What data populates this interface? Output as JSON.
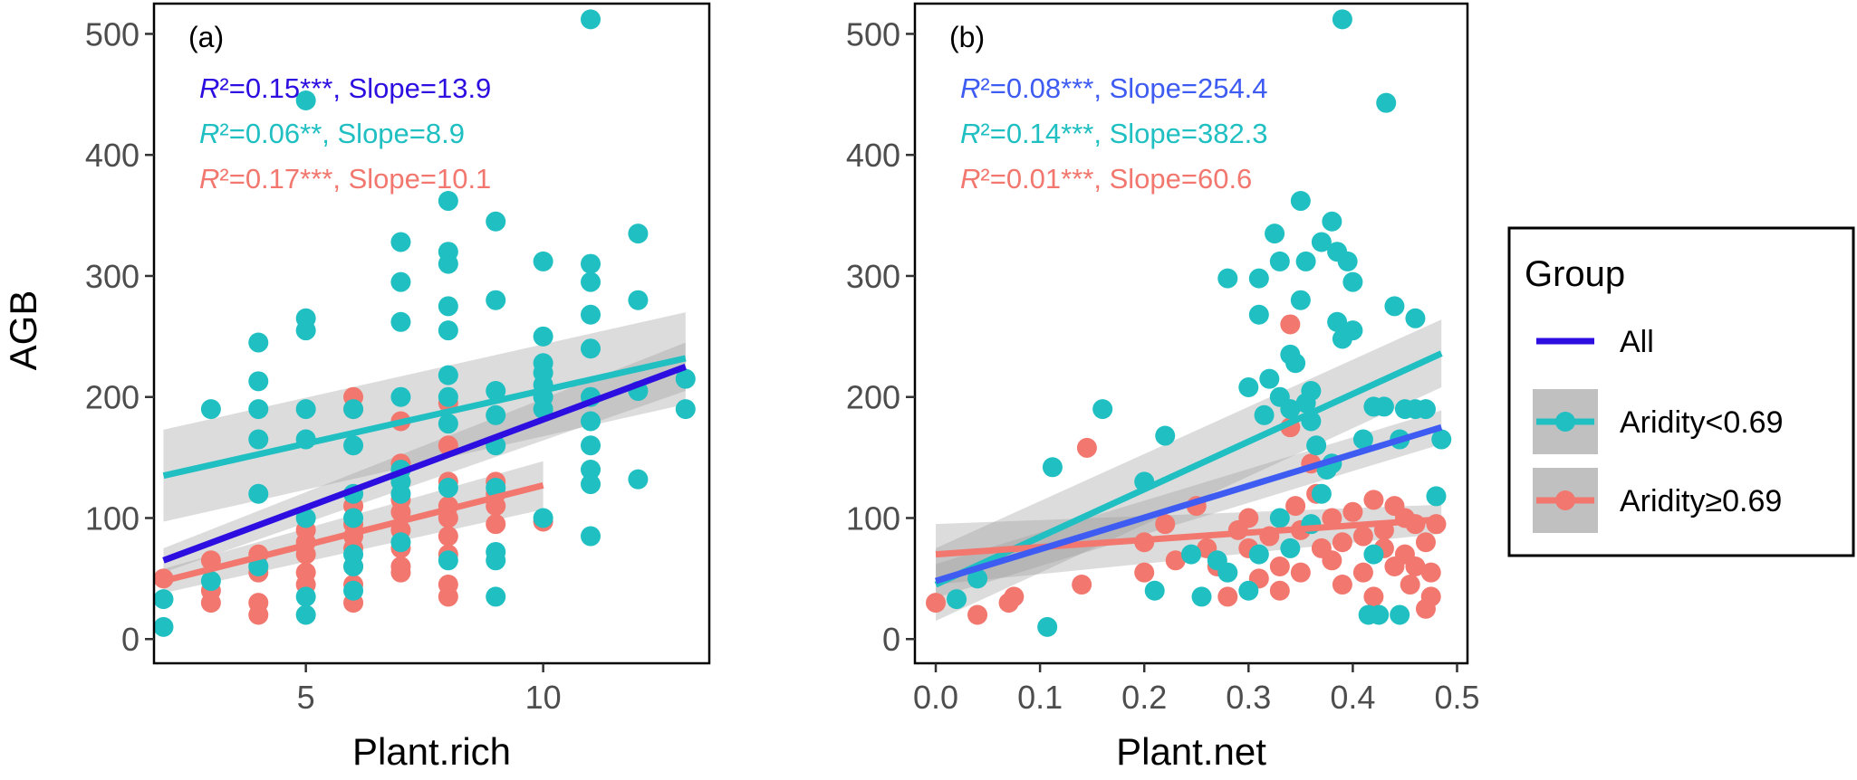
{
  "colors": {
    "all": "#2C0FE0",
    "all_b": "#3E5BF2",
    "low": "#1FBFC2",
    "high": "#F2776E",
    "ribbon": "#9a9a9a"
  },
  "legend": {
    "title": "Group",
    "items": [
      {
        "key": "all",
        "label": "All"
      },
      {
        "key": "low",
        "label": "Aridity<0.69"
      },
      {
        "key": "high",
        "label": "Aridity≥0.69"
      }
    ]
  },
  "y_label": "AGB",
  "chart_data": [
    {
      "type": "scatter",
      "panel_label": "(a)",
      "xlabel": "Plant.rich",
      "ylabel": "AGB",
      "xlim": [
        1.8,
        13.5
      ],
      "ylim": [
        -20,
        525
      ],
      "xticks": [
        5,
        10
      ],
      "yticks": [
        0,
        100,
        200,
        300,
        400,
        500
      ],
      "annotations": [
        {
          "italic": "R",
          "text": "²=0.15***, Slope=13.9",
          "color_key": "all"
        },
        {
          "italic": "R",
          "text": "²=0.06**, Slope=8.9",
          "color_key": "low"
        },
        {
          "italic": "R",
          "text": "²=0.17***, Slope=10.1",
          "color_key": "high"
        }
      ],
      "fits": [
        {
          "group": "low",
          "x": [
            2,
            13
          ],
          "y": [
            135,
            232
          ],
          "ci": [
            38,
            38
          ]
        },
        {
          "group": "high",
          "x": [
            2,
            10
          ],
          "y": [
            48,
            127
          ],
          "ci": [
            10,
            20
          ]
        },
        {
          "group": "all",
          "x": [
            2,
            13
          ],
          "y": [
            65,
            225
          ],
          "ci": [
            10,
            20
          ]
        }
      ],
      "series": [
        {
          "name": "Aridity<0.69",
          "group": "low",
          "points": [
            [
              2,
              10
            ],
            [
              2,
              33
            ],
            [
              3,
              190
            ],
            [
              3,
              48
            ],
            [
              4,
              245
            ],
            [
              4,
              213
            ],
            [
              4,
              190
            ],
            [
              4,
              165
            ],
            [
              4,
              120
            ],
            [
              4,
              60
            ],
            [
              5,
              445
            ],
            [
              5,
              265
            ],
            [
              5,
              255
            ],
            [
              5,
              190
            ],
            [
              5,
              165
            ],
            [
              5,
              100
            ],
            [
              5,
              35
            ],
            [
              5,
              20
            ],
            [
              6,
              190
            ],
            [
              6,
              160
            ],
            [
              6,
              120
            ],
            [
              6,
              100
            ],
            [
              6,
              70
            ],
            [
              6,
              60
            ],
            [
              6,
              40
            ],
            [
              7,
              328
            ],
            [
              7,
              295
            ],
            [
              7,
              262
            ],
            [
              7,
              200
            ],
            [
              7,
              140
            ],
            [
              7,
              130
            ],
            [
              7,
              120
            ],
            [
              7,
              80
            ],
            [
              8,
              362
            ],
            [
              8,
              320
            ],
            [
              8,
              310
            ],
            [
              8,
              275
            ],
            [
              8,
              255
            ],
            [
              8,
              218
            ],
            [
              8,
              200
            ],
            [
              8,
              178
            ],
            [
              8,
              125
            ],
            [
              8,
              65
            ],
            [
              9,
              345
            ],
            [
              9,
              280
            ],
            [
              9,
              205
            ],
            [
              9,
              185
            ],
            [
              9,
              160
            ],
            [
              9,
              125
            ],
            [
              9,
              72
            ],
            [
              9,
              65
            ],
            [
              9,
              35
            ],
            [
              10,
              312
            ],
            [
              10,
              250
            ],
            [
              10,
              228
            ],
            [
              10,
              220
            ],
            [
              10,
              210
            ],
            [
              10,
              200
            ],
            [
              10,
              190
            ],
            [
              10,
              100
            ],
            [
              11,
              512
            ],
            [
              11,
              310
            ],
            [
              11,
              295
            ],
            [
              11,
              268
            ],
            [
              11,
              240
            ],
            [
              11,
              200
            ],
            [
              11,
              180
            ],
            [
              11,
              160
            ],
            [
              11,
              140
            ],
            [
              11,
              128
            ],
            [
              11,
              85
            ],
            [
              12,
              335
            ],
            [
              12,
              280
            ],
            [
              12,
              205
            ],
            [
              12,
              132
            ],
            [
              13,
              215
            ],
            [
              13,
              190
            ]
          ]
        },
        {
          "name": "Aridity≥0.69",
          "group": "high",
          "points": [
            [
              2,
              50
            ],
            [
              3,
              65
            ],
            [
              3,
              40
            ],
            [
              3,
              30
            ],
            [
              4,
              70
            ],
            [
              4,
              55
            ],
            [
              4,
              30
            ],
            [
              4,
              20
            ],
            [
              5,
              90
            ],
            [
              5,
              80
            ],
            [
              5,
              70
            ],
            [
              5,
              55
            ],
            [
              5,
              45
            ],
            [
              6,
              200
            ],
            [
              6,
              190
            ],
            [
              6,
              110
            ],
            [
              6,
              95
            ],
            [
              6,
              85
            ],
            [
              6,
              75
            ],
            [
              6,
              60
            ],
            [
              6,
              45
            ],
            [
              6,
              30
            ],
            [
              7,
              180
            ],
            [
              7,
              145
            ],
            [
              7,
              130
            ],
            [
              7,
              115
            ],
            [
              7,
              105
            ],
            [
              7,
              90
            ],
            [
              7,
              75
            ],
            [
              7,
              60
            ],
            [
              7,
              55
            ],
            [
              8,
              195
            ],
            [
              8,
              160
            ],
            [
              8,
              130
            ],
            [
              8,
              110
            ],
            [
              8,
              100
            ],
            [
              8,
              85
            ],
            [
              8,
              70
            ],
            [
              8,
              45
            ],
            [
              8,
              35
            ],
            [
              9,
              130
            ],
            [
              9,
              120
            ],
            [
              9,
              110
            ],
            [
              9,
              95
            ],
            [
              10,
              97
            ]
          ]
        }
      ]
    },
    {
      "type": "scatter",
      "panel_label": "(b)",
      "xlabel": "Plant.net",
      "ylabel": "",
      "xlim": [
        -0.02,
        0.51
      ],
      "ylim": [
        -20,
        525
      ],
      "xticks": [
        0.0,
        0.1,
        0.2,
        0.3,
        0.4,
        0.5
      ],
      "xtick_labels": [
        "0.0",
        "0.1",
        "0.2",
        "0.3",
        "0.4",
        "0.5"
      ],
      "yticks": [
        0,
        100,
        200,
        300,
        400,
        500
      ],
      "annotations": [
        {
          "italic": "R",
          "text": "²=0.08***, Slope=254.4",
          "color_key": "all"
        },
        {
          "italic": "R",
          "text": "²=0.14***, Slope=382.3",
          "color_key": "low"
        },
        {
          "italic": "R",
          "text": "²=0.01***, Slope=60.6",
          "color_key": "high"
        }
      ],
      "fits": [
        {
          "group": "low",
          "x": [
            0,
            0.485
          ],
          "y": [
            45,
            236
          ],
          "ci": [
            30,
            28
          ]
        },
        {
          "group": "high",
          "x": [
            0,
            0.485
          ],
          "y": [
            70,
            99
          ],
          "ci": [
            25,
            12
          ]
        },
        {
          "group": "all",
          "x": [
            0,
            0.485
          ],
          "y": [
            48,
            175
          ],
          "ci": [
            14,
            14
          ]
        }
      ],
      "series": [
        {
          "name": "Aridity<0.69",
          "group": "low",
          "points": [
            [
              0.02,
              33
            ],
            [
              0.04,
              50
            ],
            [
              0.107,
              10
            ],
            [
              0.112,
              142
            ],
            [
              0.16,
              190
            ],
            [
              0.2,
              130
            ],
            [
              0.22,
              168
            ],
            [
              0.21,
              40
            ],
            [
              0.245,
              70
            ],
            [
              0.255,
              35
            ],
            [
              0.27,
              65
            ],
            [
              0.28,
              298
            ],
            [
              0.3,
              208
            ],
            [
              0.31,
              268
            ],
            [
              0.31,
              298
            ],
            [
              0.325,
              335
            ],
            [
              0.33,
              312
            ],
            [
              0.315,
              185
            ],
            [
              0.32,
              215
            ],
            [
              0.33,
              200
            ],
            [
              0.33,
              100
            ],
            [
              0.34,
              235
            ],
            [
              0.345,
              228
            ],
            [
              0.35,
              362
            ],
            [
              0.35,
              280
            ],
            [
              0.355,
              312
            ],
            [
              0.36,
              205
            ],
            [
              0.36,
              180
            ],
            [
              0.37,
              328
            ],
            [
              0.375,
              140
            ],
            [
              0.38,
              345
            ],
            [
              0.385,
              320
            ],
            [
              0.39,
              512
            ],
            [
              0.385,
              262
            ],
            [
              0.395,
              312
            ],
            [
              0.39,
              248
            ],
            [
              0.4,
              255
            ],
            [
              0.4,
              295
            ],
            [
              0.41,
              165
            ],
            [
              0.42,
              192
            ],
            [
              0.425,
              20
            ],
            [
              0.43,
              192
            ],
            [
              0.432,
              443
            ],
            [
              0.44,
              275
            ],
            [
              0.445,
              165
            ],
            [
              0.45,
              190
            ],
            [
              0.46,
              265
            ],
            [
              0.46,
              190
            ],
            [
              0.47,
              190
            ],
            [
              0.48,
              118
            ],
            [
              0.485,
              165
            ],
            [
              0.415,
              20
            ],
            [
              0.445,
              20
            ],
            [
              0.3,
              40
            ],
            [
              0.34,
              75
            ],
            [
              0.36,
              95
            ],
            [
              0.38,
              145
            ],
            [
              0.34,
              190
            ],
            [
              0.355,
              195
            ],
            [
              0.365,
              160
            ],
            [
              0.37,
              120
            ],
            [
              0.42,
              70
            ],
            [
              0.31,
              70
            ],
            [
              0.28,
              55
            ]
          ]
        },
        {
          "name": "Aridity≥0.69",
          "group": "high",
          "points": [
            [
              0.0,
              30
            ],
            [
              0.04,
              20
            ],
            [
              0.07,
              30
            ],
            [
              0.075,
              35
            ],
            [
              0.14,
              45
            ],
            [
              0.145,
              158
            ],
            [
              0.2,
              55
            ],
            [
              0.2,
              80
            ],
            [
              0.22,
              95
            ],
            [
              0.23,
              65
            ],
            [
              0.25,
              110
            ],
            [
              0.26,
              75
            ],
            [
              0.27,
              60
            ],
            [
              0.28,
              35
            ],
            [
              0.29,
              90
            ],
            [
              0.3,
              100
            ],
            [
              0.3,
              75
            ],
            [
              0.31,
              50
            ],
            [
              0.32,
              85
            ],
            [
              0.33,
              60
            ],
            [
              0.33,
              40
            ],
            [
              0.34,
              260
            ],
            [
              0.34,
              175
            ],
            [
              0.345,
              110
            ],
            [
              0.35,
              90
            ],
            [
              0.35,
              55
            ],
            [
              0.36,
              145
            ],
            [
              0.365,
              120
            ],
            [
              0.37,
              75
            ],
            [
              0.38,
              100
            ],
            [
              0.38,
              65
            ],
            [
              0.39,
              80
            ],
            [
              0.39,
              45
            ],
            [
              0.4,
              105
            ],
            [
              0.41,
              85
            ],
            [
              0.41,
              55
            ],
            [
              0.42,
              115
            ],
            [
              0.42,
              35
            ],
            [
              0.43,
              90
            ],
            [
              0.43,
              75
            ],
            [
              0.44,
              110
            ],
            [
              0.44,
              60
            ],
            [
              0.45,
              100
            ],
            [
              0.45,
              70
            ],
            [
              0.455,
              45
            ],
            [
              0.46,
              95
            ],
            [
              0.46,
              60
            ],
            [
              0.47,
              80
            ],
            [
              0.475,
              35
            ],
            [
              0.475,
              55
            ],
            [
              0.48,
              95
            ],
            [
              0.47,
              25
            ]
          ]
        }
      ]
    }
  ]
}
